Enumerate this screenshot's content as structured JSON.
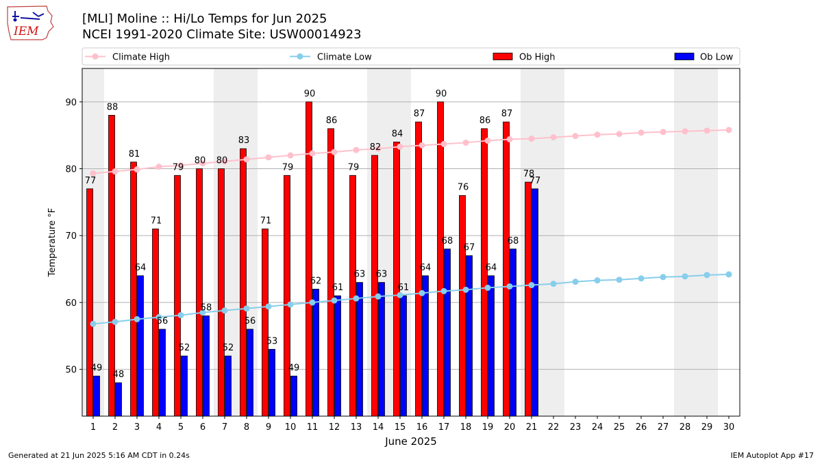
{
  "header": {
    "title": "[MLI] Moline :: Hi/Lo Temps for Jun 2025",
    "subtitle": "NCEI 1991-2020 Climate Site: USW00014923",
    "logo_text": "IEM"
  },
  "footer": {
    "left": "Generated at 21 Jun 2025 5:16 AM CDT in 0.24s",
    "right": "IEM Autoplot App #17"
  },
  "colors": {
    "ob_high": "#ff0000",
    "ob_low": "#0000ff",
    "climate_high": "#ffc0cb",
    "climate_low": "#87ceeb",
    "weekend_shade": "#eeeeee",
    "grid": "#b0b0b0"
  },
  "chart_data": {
    "type": "bar",
    "xlabel": "June 2025",
    "ylabel": "Temperature °F",
    "ylim": [
      43,
      95
    ],
    "yticks": [
      50,
      60,
      70,
      80,
      90
    ],
    "grid": "horizontal",
    "legend_position": "top",
    "days": [
      1,
      2,
      3,
      4,
      5,
      6,
      7,
      8,
      9,
      10,
      11,
      12,
      13,
      14,
      15,
      16,
      17,
      18,
      19,
      20,
      21,
      22,
      23,
      24,
      25,
      26,
      27,
      28,
      29,
      30
    ],
    "weekend_days": [
      1,
      7,
      8,
      14,
      15,
      21,
      22,
      28,
      29
    ],
    "legend": [
      "Climate High",
      "Climate Low",
      "Ob High",
      "Ob Low"
    ],
    "series": [
      {
        "name": "Ob High",
        "type": "bar",
        "values": [
          77,
          88,
          81,
          71,
          79,
          80,
          80,
          83,
          71,
          79,
          90,
          86,
          79,
          82,
          84,
          87,
          90,
          76,
          86,
          87,
          78
        ]
      },
      {
        "name": "Ob Low",
        "type": "bar",
        "values": [
          49,
          48,
          64,
          56,
          52,
          58,
          52,
          56,
          53,
          49,
          62,
          61,
          63,
          63,
          61,
          64,
          68,
          67,
          64,
          68,
          77
        ]
      },
      {
        "name": "Climate High",
        "type": "line",
        "values": [
          79.3,
          79.6,
          79.9,
          80.3,
          80.5,
          80.8,
          81.1,
          81.4,
          81.7,
          82.0,
          82.3,
          82.5,
          82.8,
          83.0,
          83.3,
          83.5,
          83.7,
          83.9,
          84.2,
          84.4,
          84.5,
          84.7,
          84.9,
          85.1,
          85.2,
          85.4,
          85.5,
          85.6,
          85.7,
          85.8
        ]
      },
      {
        "name": "Climate Low",
        "type": "line",
        "values": [
          56.8,
          57.1,
          57.5,
          57.8,
          58.1,
          58.5,
          58.8,
          59.1,
          59.4,
          59.7,
          60.0,
          60.3,
          60.6,
          60.9,
          61.1,
          61.4,
          61.7,
          61.9,
          62.2,
          62.4,
          62.6,
          62.8,
          63.1,
          63.3,
          63.4,
          63.6,
          63.8,
          63.9,
          64.1,
          64.2
        ]
      }
    ]
  }
}
